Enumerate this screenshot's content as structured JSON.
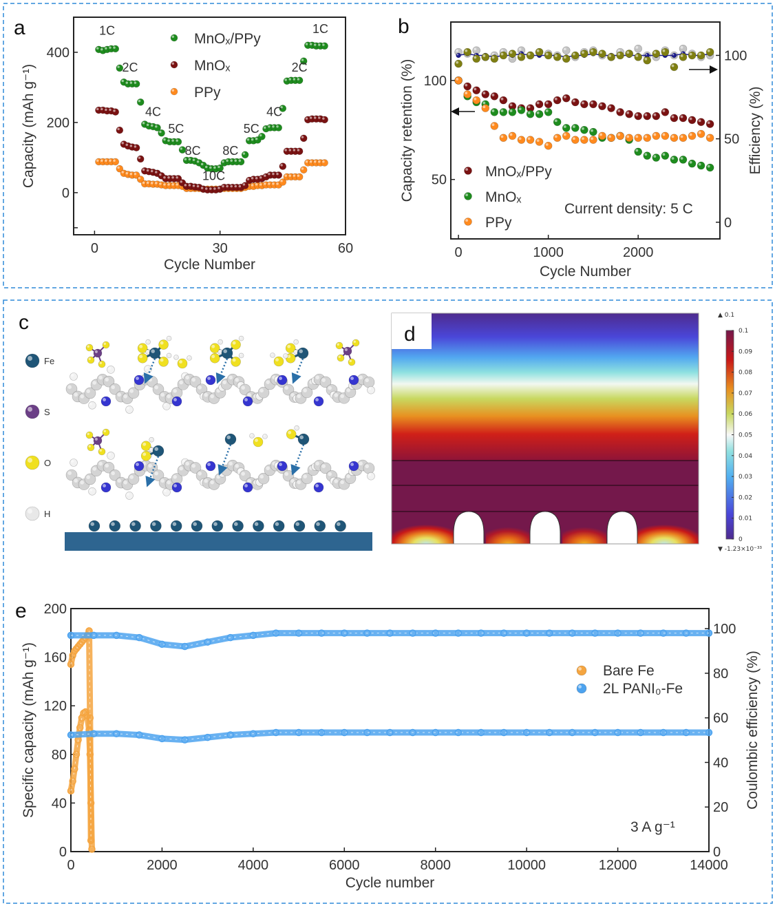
{
  "panels": {
    "a": "a",
    "b": "b",
    "c": "c",
    "d": "d",
    "e": "e"
  },
  "chart_data": [
    {
      "panel": "a",
      "type": "scatter",
      "xlabel": "Cycle Number",
      "ylabel": "Capacity (mAh g⁻¹)",
      "xlim": [
        -5,
        60
      ],
      "ylim": [
        -120,
        500
      ],
      "xticks": [
        "0",
        "30",
        "60"
      ],
      "yticks": [
        "0",
        "200",
        "400"
      ],
      "legend_placement": "top-center",
      "x": [
        1,
        2,
        3,
        4,
        5,
        6,
        7,
        8,
        9,
        10,
        11,
        12,
        13,
        14,
        15,
        16,
        17,
        18,
        19,
        20,
        21,
        22,
        23,
        24,
        25,
        26,
        27,
        28,
        29,
        30,
        31,
        32,
        33,
        34,
        35,
        36,
        37,
        38,
        39,
        40,
        41,
        42,
        43,
        44,
        45,
        46,
        47,
        48,
        49,
        50,
        51,
        52,
        53,
        54,
        55
      ],
      "series": [
        {
          "name": "MnOₓ/PPy",
          "color": "#1e8c1e",
          "values": [
            408,
            405,
            408,
            410,
            410,
            355,
            315,
            310,
            310,
            310,
            258,
            195,
            190,
            188,
            185,
            170,
            148,
            145,
            145,
            145,
            122,
            92,
            92,
            90,
            85,
            78,
            70,
            68,
            68,
            70,
            85,
            88,
            88,
            88,
            88,
            108,
            148,
            148,
            150,
            160,
            182,
            185,
            185,
            185,
            240,
            318,
            320,
            320,
            320,
            375,
            420,
            420,
            418,
            418,
            418
          ]
        },
        {
          "name": "MnOₓ",
          "color": "#7a1212",
          "values": [
            235,
            235,
            233,
            233,
            230,
            178,
            138,
            133,
            130,
            128,
            96,
            62,
            60,
            58,
            55,
            48,
            40,
            40,
            40,
            40,
            28,
            18,
            18,
            16,
            15,
            10,
            8,
            8,
            8,
            10,
            15,
            15,
            15,
            15,
            15,
            20,
            35,
            38,
            38,
            40,
            45,
            50,
            50,
            50,
            75,
            118,
            118,
            118,
            118,
            155,
            208,
            210,
            210,
            210,
            208
          ]
        },
        {
          "name": "PPy",
          "color": "#ff8a1e",
          "values": [
            88,
            88,
            88,
            88,
            88,
            68,
            55,
            52,
            50,
            50,
            38,
            25,
            25,
            24,
            24,
            22,
            20,
            20,
            20,
            20,
            18,
            12,
            12,
            12,
            12,
            10,
            10,
            10,
            10,
            10,
            12,
            12,
            12,
            12,
            12,
            15,
            18,
            18,
            20,
            20,
            22,
            22,
            22,
            22,
            30,
            45,
            45,
            45,
            45,
            65,
            85,
            85,
            85,
            85,
            85
          ]
        }
      ],
      "annotations": [
        {
          "text": "1C",
          "x": 3,
          "y": 450
        },
        {
          "text": "2C",
          "x": 8.5,
          "y": 345
        },
        {
          "text": "4C",
          "x": 14,
          "y": 218
        },
        {
          "text": "5C",
          "x": 19.5,
          "y": 170
        },
        {
          "text": "8C",
          "x": 23.5,
          "y": 108
        },
        {
          "text": "10C",
          "x": 28.5,
          "y": 36
        },
        {
          "text": "8C",
          "x": 32.5,
          "y": 108
        },
        {
          "text": "5C",
          "x": 37.5,
          "y": 170
        },
        {
          "text": "4C",
          "x": 43,
          "y": 218
        },
        {
          "text": "2C",
          "x": 49,
          "y": 345
        },
        {
          "text": "1C",
          "x": 54,
          "y": 455
        }
      ]
    },
    {
      "panel": "b",
      "type": "scatter",
      "xlabel": "Cycle Number",
      "ylabel": "Capacity retention (%)",
      "ylabel_right": "Efficiency (%)",
      "xlim": [
        -85,
        2910
      ],
      "ylim": [
        20,
        129.5
      ],
      "ylim_right": [
        -10,
        120
      ],
      "xticks": [
        "0",
        "1000",
        "2000"
      ],
      "yticks": [
        "50",
        "100"
      ],
      "yticks_right": [
        "0",
        "50",
        "100"
      ],
      "legend_placement": "bottom-left",
      "annotation": "Current density: 5 C",
      "x": [
        0,
        100,
        200,
        300,
        400,
        500,
        600,
        700,
        800,
        900,
        1000,
        1100,
        1200,
        1300,
        1400,
        1500,
        1600,
        1700,
        1800,
        1900,
        2000,
        2100,
        2200,
        2300,
        2400,
        2500,
        2600,
        2700,
        2800
      ],
      "series": [
        {
          "name": "MnOₓ/PPy",
          "color": "#7a1212",
          "axis": "left",
          "values": [
            100,
            97,
            95,
            93,
            92,
            90,
            87,
            86,
            86,
            88,
            88,
            90,
            91,
            89,
            88,
            88,
            87,
            86,
            84,
            83,
            82,
            82,
            82,
            84,
            81,
            81,
            80,
            79,
            78
          ]
        },
        {
          "name": "MnOₓ",
          "color": "#1e8c1e",
          "axis": "left",
          "values": [
            100,
            92,
            89,
            88,
            84,
            84,
            84,
            85,
            83,
            83,
            84,
            79,
            76,
            76,
            75,
            74,
            71,
            71,
            72,
            70,
            64,
            62,
            61,
            62,
            60,
            60,
            58,
            57,
            56
          ]
        },
        {
          "name": "PPy",
          "color": "#ff8a1e",
          "axis": "left",
          "values": [
            100,
            93,
            90,
            86,
            77,
            71,
            72,
            70,
            70,
            69,
            67,
            71,
            72,
            70,
            70,
            70,
            72,
            71,
            72,
            71,
            71,
            71,
            72,
            72,
            71,
            71,
            72,
            73,
            71
          ]
        },
        {
          "color": "#c4c4c4",
          "axis": "right",
          "values": [
            102,
            101,
            103,
            99,
            100,
            102,
            98,
            103,
            100,
            102,
            101,
            100,
            103,
            99,
            102,
            103,
            100,
            99,
            102,
            101,
            104,
            100,
            99,
            103,
            100,
            104,
            101,
            99,
            100
          ]
        },
        {
          "color": "#1c1c8c",
          "axis": "right",
          "values": [
            100,
            101,
            100,
            100,
            99,
            100,
            100,
            101,
            100,
            100,
            100,
            100,
            99,
            100,
            100,
            101,
            100,
            100,
            100,
            100,
            100,
            100,
            100,
            100,
            100,
            101,
            100,
            100,
            101
          ]
        },
        {
          "color": "#7f7f12",
          "axis": "right",
          "values": [
            95,
            102,
            98,
            99,
            98,
            100,
            101,
            99,
            100,
            102,
            100,
            99,
            98,
            100,
            101,
            102,
            101,
            99,
            100,
            101,
            99,
            97,
            101,
            102,
            93,
            99,
            100,
            100,
            102
          ]
        }
      ]
    },
    {
      "panel": "e",
      "type": "scatter",
      "xlabel": "Cycle number",
      "ylabel": "Specific capacity (mAh g⁻¹)",
      "ylabel_right": "Coulombic efficiency (%)",
      "xlim": [
        0,
        14000
      ],
      "ylim": [
        0,
        200
      ],
      "ylim_right": [
        0,
        109
      ],
      "xticks": [
        "0",
        "2000",
        "4000",
        "6000",
        "8000",
        "10000",
        "12000",
        "14000"
      ],
      "yticks": [
        "0",
        "40",
        "80",
        "120",
        "160",
        "200"
      ],
      "yticks_right": [
        "0",
        "20",
        "40",
        "60",
        "80",
        "100"
      ],
      "legend_placement": "right",
      "annotation": "3 A g⁻¹",
      "series": [
        {
          "name": "Bare Fe",
          "color": "#f5a540",
          "kind": "capacity",
          "x": [
            0,
            40,
            80,
            120,
            160,
            200,
            240,
            280,
            320,
            360,
            400,
            420,
            440,
            460
          ],
          "values": [
            50,
            58,
            68,
            80,
            92,
            102,
            110,
            114,
            115,
            112,
            100,
            80,
            40,
            2
          ]
        },
        {
          "color": "#f5a540",
          "kind": "efficiency",
          "x": [
            0,
            40,
            80,
            120,
            160,
            200,
            240,
            280,
            320,
            360,
            400,
            420,
            440
          ],
          "values": [
            84,
            88,
            90,
            91,
            92,
            93,
            94,
            95,
            96,
            97,
            99,
            60,
            5
          ]
        },
        {
          "name": "2L PANI₀-Fe",
          "color": "#4da3ef",
          "kind": "capacity",
          "x": [
            0,
            500,
            1000,
            1500,
            2000,
            2500,
            3000,
            3500,
            4000,
            4500,
            5000,
            5500,
            6000,
            6500,
            7000,
            7500,
            8000,
            8500,
            9000,
            9500,
            10000,
            10500,
            11000,
            11500,
            12000,
            12500,
            13000,
            13500,
            14000
          ],
          "values": [
            96,
            97,
            97,
            96,
            93,
            92,
            94,
            96,
            97,
            98,
            98,
            98,
            98,
            98,
            98,
            98,
            98,
            98,
            98,
            98,
            98,
            98,
            98,
            98,
            98,
            98,
            98,
            98,
            98
          ]
        },
        {
          "color": "#4da3ef",
          "kind": "efficiency",
          "x": [
            0,
            500,
            1000,
            1500,
            2000,
            2500,
            3000,
            3500,
            4000,
            4500,
            5000,
            5500,
            6000,
            6500,
            7000,
            7500,
            8000,
            8500,
            9000,
            9500,
            10000,
            10500,
            11000,
            11500,
            12000,
            12500,
            13000,
            13500,
            14000
          ],
          "values": [
            97,
            97,
            97,
            96,
            93,
            92,
            94,
            96,
            97,
            98,
            98,
            98,
            98,
            98,
            98,
            98,
            98,
            98,
            98,
            98,
            98,
            98,
            98,
            98,
            98,
            98,
            98,
            98,
            98
          ]
        }
      ]
    }
  ],
  "panel_c": {
    "legend": [
      {
        "element": "Fe",
        "color": "#1f5577"
      },
      {
        "element": "S",
        "color": "#6b3f86"
      },
      {
        "element": "O",
        "color": "#f0e020"
      },
      {
        "element": "H",
        "color": "#e8e8e8"
      }
    ]
  },
  "panel_d": {
    "colorbar_ticks": [
      "0",
      "0.01",
      "0.02",
      "0.03",
      "0.04",
      "0.05",
      "0.06",
      "0.07",
      "0.08",
      "0.09",
      "0.1"
    ],
    "max_label": "▲ 0.1",
    "min_label": "▼ -1.23×10⁻³³"
  }
}
